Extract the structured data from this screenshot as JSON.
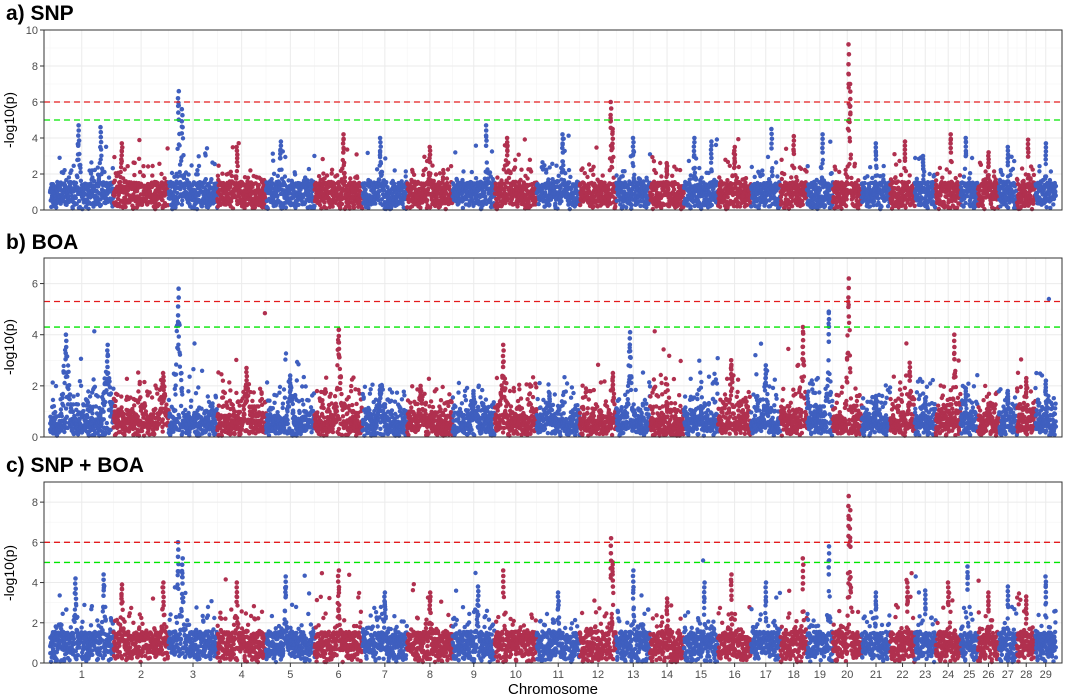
{
  "chart_data": [
    {
      "type": "scatter",
      "title": "a) SNP",
      "ylabel": "-log10(p)",
      "xlabel": "",
      "ylim": [
        0,
        10
      ],
      "yticks": [
        0,
        2,
        4,
        6,
        8,
        10
      ],
      "grid": true,
      "thresholds": [
        {
          "value": 6.0,
          "color": "#e41a1c",
          "style": "dashed"
        },
        {
          "value": 5.0,
          "color": "#00e600",
          "style": "dashed"
        }
      ],
      "peaks": [
        {
          "chr": 1,
          "pos": 0.45,
          "value": 4.7
        },
        {
          "chr": 1,
          "pos": 0.8,
          "value": 4.6
        },
        {
          "chr": 2,
          "pos": 0.15,
          "value": 3.7
        },
        {
          "chr": 3,
          "pos": 0.2,
          "value": 6.6
        },
        {
          "chr": 3,
          "pos": 0.28,
          "value": 5.6
        },
        {
          "chr": 4,
          "pos": 0.4,
          "value": 3.5
        },
        {
          "chr": 5,
          "pos": 0.3,
          "value": 3.8
        },
        {
          "chr": 6,
          "pos": 0.6,
          "value": 4.2
        },
        {
          "chr": 7,
          "pos": 0.4,
          "value": 4.0
        },
        {
          "chr": 8,
          "pos": 0.5,
          "value": 3.5
        },
        {
          "chr": 9,
          "pos": 0.8,
          "value": 4.7
        },
        {
          "chr": 10,
          "pos": 0.3,
          "value": 4.0
        },
        {
          "chr": 11,
          "pos": 0.6,
          "value": 4.2
        },
        {
          "chr": 12,
          "pos": 0.85,
          "value": 6.0
        },
        {
          "chr": 12,
          "pos": 0.9,
          "value": 4.5
        },
        {
          "chr": 13,
          "pos": 0.5,
          "value": 4.0
        },
        {
          "chr": 14,
          "pos": 0.5,
          "value": 2.6
        },
        {
          "chr": 15,
          "pos": 0.3,
          "value": 4.0
        },
        {
          "chr": 15,
          "pos": 0.8,
          "value": 3.8
        },
        {
          "chr": 16,
          "pos": 0.5,
          "value": 3.5
        },
        {
          "chr": 17,
          "pos": 0.7,
          "value": 4.5
        },
        {
          "chr": 18,
          "pos": 0.5,
          "value": 4.1
        },
        {
          "chr": 19,
          "pos": 0.6,
          "value": 4.2
        },
        {
          "chr": 20,
          "pos": 0.55,
          "value": 9.2
        },
        {
          "chr": 20,
          "pos": 0.6,
          "value": 7.0
        },
        {
          "chr": 21,
          "pos": 0.5,
          "value": 3.7
        },
        {
          "chr": 22,
          "pos": 0.6,
          "value": 3.8
        },
        {
          "chr": 23,
          "pos": 0.4,
          "value": 3.0
        },
        {
          "chr": 24,
          "pos": 0.6,
          "value": 4.2
        },
        {
          "chr": 25,
          "pos": 0.3,
          "value": 4.0
        },
        {
          "chr": 26,
          "pos": 0.5,
          "value": 3.2
        },
        {
          "chr": 27,
          "pos": 0.5,
          "value": 3.5
        },
        {
          "chr": 28,
          "pos": 0.6,
          "value": 3.9
        },
        {
          "chr": 29,
          "pos": 0.5,
          "value": 3.7
        }
      ]
    },
    {
      "type": "scatter",
      "title": "b) BOA",
      "ylabel": "-log10(p)",
      "xlabel": "",
      "ylim": [
        0,
        7
      ],
      "yticks": [
        0,
        2,
        4,
        6
      ],
      "grid": true,
      "thresholds": [
        {
          "value": 5.3,
          "color": "#e41a1c",
          "style": "dashed"
        },
        {
          "value": 4.3,
          "color": "#00e600",
          "style": "dashed"
        }
      ],
      "peaks": [
        {
          "chr": 1,
          "pos": 0.25,
          "value": 4.0
        },
        {
          "chr": 1,
          "pos": 0.9,
          "value": 3.6
        },
        {
          "chr": 2,
          "pos": 0.9,
          "value": 2.5
        },
        {
          "chr": 3,
          "pos": 0.2,
          "value": 5.8
        },
        {
          "chr": 4,
          "pos": 0.6,
          "value": 2.7
        },
        {
          "chr": 5,
          "pos": 0.5,
          "value": 2.4
        },
        {
          "chr": 6,
          "pos": 0.5,
          "value": 4.2
        },
        {
          "chr": 7,
          "pos": 0.4,
          "value": 2.0
        },
        {
          "chr": 8,
          "pos": 0.3,
          "value": 2.0
        },
        {
          "chr": 9,
          "pos": 0.5,
          "value": 1.8
        },
        {
          "chr": 10,
          "pos": 0.2,
          "value": 3.6
        },
        {
          "chr": 11,
          "pos": 0.3,
          "value": 1.7
        },
        {
          "chr": 12,
          "pos": 0.9,
          "value": 2.5
        },
        {
          "chr": 13,
          "pos": 0.4,
          "value": 4.1
        },
        {
          "chr": 14,
          "pos": 0.5,
          "value": 1.3
        },
        {
          "chr": 15,
          "pos": 0.5,
          "value": 1.2
        },
        {
          "chr": 16,
          "pos": 0.4,
          "value": 3.0
        },
        {
          "chr": 17,
          "pos": 0.5,
          "value": 2.8
        },
        {
          "chr": 18,
          "pos": 0.85,
          "value": 4.3
        },
        {
          "chr": 19,
          "pos": 0.85,
          "value": 4.9
        },
        {
          "chr": 20,
          "pos": 0.55,
          "value": 6.2
        },
        {
          "chr": 21,
          "pos": 0.5,
          "value": 1.6
        },
        {
          "chr": 22,
          "pos": 0.8,
          "value": 2.9
        },
        {
          "chr": 23,
          "pos": 0.5,
          "value": 1.5
        },
        {
          "chr": 24,
          "pos": 0.75,
          "value": 4.0
        },
        {
          "chr": 25,
          "pos": 0.3,
          "value": 1.9
        },
        {
          "chr": 26,
          "pos": 0.5,
          "value": 1.3
        },
        {
          "chr": 27,
          "pos": 0.5,
          "value": 1.8
        },
        {
          "chr": 28,
          "pos": 0.5,
          "value": 2.3
        },
        {
          "chr": 29,
          "pos": 0.5,
          "value": 2.2
        }
      ]
    },
    {
      "type": "scatter",
      "title": "c) SNP + BOA",
      "ylabel": "-log10(p)",
      "xlabel": "Chromosome",
      "ylim": [
        0,
        9
      ],
      "yticks": [
        0,
        2,
        4,
        6,
        8
      ],
      "grid": true,
      "thresholds": [
        {
          "value": 6.0,
          "color": "#e41a1c",
          "style": "dashed"
        },
        {
          "value": 5.0,
          "color": "#00e600",
          "style": "dashed"
        }
      ],
      "peaks": [
        {
          "chr": 1,
          "pos": 0.4,
          "value": 4.2
        },
        {
          "chr": 1,
          "pos": 0.85,
          "value": 4.4
        },
        {
          "chr": 2,
          "pos": 0.15,
          "value": 3.9
        },
        {
          "chr": 2,
          "pos": 0.9,
          "value": 4.0
        },
        {
          "chr": 3,
          "pos": 0.2,
          "value": 6.0
        },
        {
          "chr": 3,
          "pos": 0.28,
          "value": 5.2
        },
        {
          "chr": 4,
          "pos": 0.4,
          "value": 4.0
        },
        {
          "chr": 5,
          "pos": 0.4,
          "value": 4.3
        },
        {
          "chr": 6,
          "pos": 0.5,
          "value": 4.6
        },
        {
          "chr": 7,
          "pos": 0.5,
          "value": 3.5
        },
        {
          "chr": 8,
          "pos": 0.5,
          "value": 3.5
        },
        {
          "chr": 9,
          "pos": 0.6,
          "value": 3.8
        },
        {
          "chr": 10,
          "pos": 0.2,
          "value": 4.6
        },
        {
          "chr": 11,
          "pos": 0.5,
          "value": 3.5
        },
        {
          "chr": 12,
          "pos": 0.85,
          "value": 6.2
        },
        {
          "chr": 12,
          "pos": 0.9,
          "value": 5.0
        },
        {
          "chr": 13,
          "pos": 0.5,
          "value": 4.6
        },
        {
          "chr": 14,
          "pos": 0.5,
          "value": 3.2
        },
        {
          "chr": 15,
          "pos": 0.6,
          "value": 4.0
        },
        {
          "chr": 16,
          "pos": 0.4,
          "value": 4.4
        },
        {
          "chr": 17,
          "pos": 0.5,
          "value": 4.0
        },
        {
          "chr": 18,
          "pos": 0.85,
          "value": 5.2
        },
        {
          "chr": 19,
          "pos": 0.85,
          "value": 5.8
        },
        {
          "chr": 20,
          "pos": 0.55,
          "value": 8.3
        },
        {
          "chr": 20,
          "pos": 0.6,
          "value": 7.6
        },
        {
          "chr": 21,
          "pos": 0.5,
          "value": 3.5
        },
        {
          "chr": 22,
          "pos": 0.7,
          "value": 4.0
        },
        {
          "chr": 23,
          "pos": 0.5,
          "value": 3.6
        },
        {
          "chr": 24,
          "pos": 0.5,
          "value": 4.0
        },
        {
          "chr": 25,
          "pos": 0.4,
          "value": 4.8
        },
        {
          "chr": 26,
          "pos": 0.5,
          "value": 3.5
        },
        {
          "chr": 27,
          "pos": 0.5,
          "value": 3.8
        },
        {
          "chr": 28,
          "pos": 0.5,
          "value": 3.3
        },
        {
          "chr": 29,
          "pos": 0.5,
          "value": 4.3
        }
      ]
    }
  ],
  "x_axis": {
    "label": "Chromosome",
    "chromosomes": [
      "1",
      "2",
      "3",
      "4",
      "5",
      "6",
      "7",
      "8",
      "9",
      "10",
      "11",
      "12",
      "13",
      "14",
      "15",
      "16",
      "17",
      "18",
      "19",
      "20",
      "21",
      "22",
      "23",
      "24",
      "25",
      "26",
      "27",
      "28",
      "29"
    ],
    "relative_lengths": [
      158,
      137,
      121,
      121,
      121,
      119,
      111,
      113,
      105,
      104,
      107,
      91,
      84,
      84,
      85,
      82,
      73,
      66,
      64,
      72,
      71,
      61,
      52,
      62,
      43,
      52,
      45,
      46,
      51
    ]
  },
  "colors": {
    "odd_chromosome": "#3f5fbf",
    "even_chromosome": "#b0304f",
    "genome_wide_threshold": "#e41a1c",
    "suggestive_threshold": "#00e600",
    "grid": "#ebebeb",
    "frame": "#333333"
  }
}
